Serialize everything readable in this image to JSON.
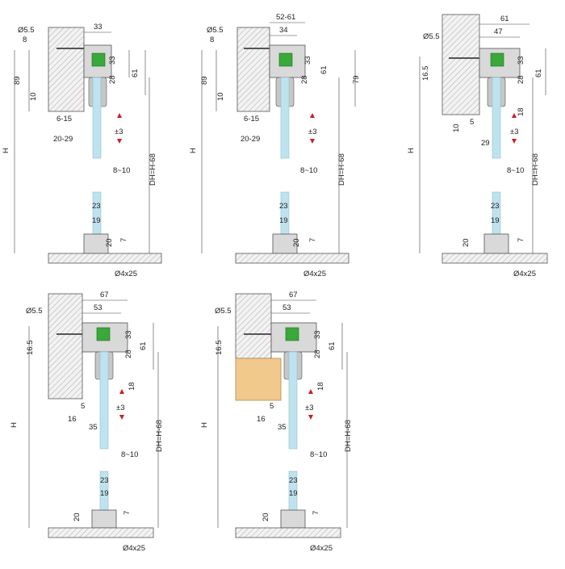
{
  "colors": {
    "glass": "#bfe3ee",
    "wheel": "#3aa83a",
    "wood": "#f2c98c",
    "arrow": "#cc1f1f"
  },
  "panels": [
    {
      "id": "p1",
      "labels": {
        "bolt": "Ø5.5",
        "d8": "8",
        "d33w": "33",
        "d33h": "33",
        "d28": "28",
        "d61": "61",
        "d89": "89",
        "d10": "10",
        "d615": "6-15",
        "d2029": "20-29",
        "pm3": "±3",
        "d810": "8~10",
        "H": "H",
        "dh": "DH=H-68",
        "d23": "23",
        "d19": "19",
        "d20": "20",
        "d7": "7",
        "pin": "Ø4x25"
      }
    },
    {
      "id": "p2",
      "labels": {
        "bolt": "Ø5.5",
        "d8": "8",
        "d5261": "52-61",
        "d34": "34",
        "d33h": "33",
        "d28": "28",
        "d61": "61",
        "d79": "79",
        "d89": "89",
        "d10": "10",
        "d615": "6-15",
        "d2029": "20-29",
        "pm3": "±3",
        "d810": "8~10",
        "H": "H",
        "dh": "DH=H-68",
        "d23": "23",
        "d19": "19",
        "d20": "20",
        "d7": "7",
        "pin": "Ø4x25"
      }
    },
    {
      "id": "p3",
      "labels": {
        "bolt": "Ø5.5",
        "d61w": "61",
        "d47": "47",
        "d33h": "33",
        "d28": "28",
        "d61": "61",
        "d165": "16.5",
        "d18": "18",
        "d5": "5",
        "d10": "10",
        "d29": "29",
        "pm3": "±3",
        "d810": "8~10",
        "H": "H",
        "dh": "DH=H-68",
        "d23": "23",
        "d19": "19",
        "d20": "20",
        "d7": "7",
        "pin": "Ø4x25"
      }
    },
    {
      "id": "p4",
      "labels": {
        "bolt": "Ø5.5",
        "d67": "67",
        "d53": "53",
        "d33h": "33",
        "d28": "28",
        "d61": "61",
        "d165": "16.5",
        "d18": "18",
        "d5": "5",
        "d16": "16",
        "d35": "35",
        "pm3": "±3",
        "d810": "8~10",
        "H": "H",
        "dh": "DH=H-68",
        "d23": "23",
        "d19": "19",
        "d20": "20",
        "d7": "7",
        "pin": "Ø4x25"
      }
    },
    {
      "id": "p5",
      "labels": {
        "bolt": "Ø5.5",
        "d67": "67",
        "d53": "53",
        "d33h": "33",
        "d28": "28",
        "d61": "61",
        "d165": "16.5",
        "d18": "18",
        "d5": "5",
        "d16": "16",
        "d35": "35",
        "pm3": "±3",
        "d810": "8~10",
        "H": "H",
        "dh": "DH=H-68",
        "d23": "23",
        "d19": "19",
        "d20": "20",
        "d7": "7",
        "pin": "Ø4x25"
      }
    }
  ]
}
